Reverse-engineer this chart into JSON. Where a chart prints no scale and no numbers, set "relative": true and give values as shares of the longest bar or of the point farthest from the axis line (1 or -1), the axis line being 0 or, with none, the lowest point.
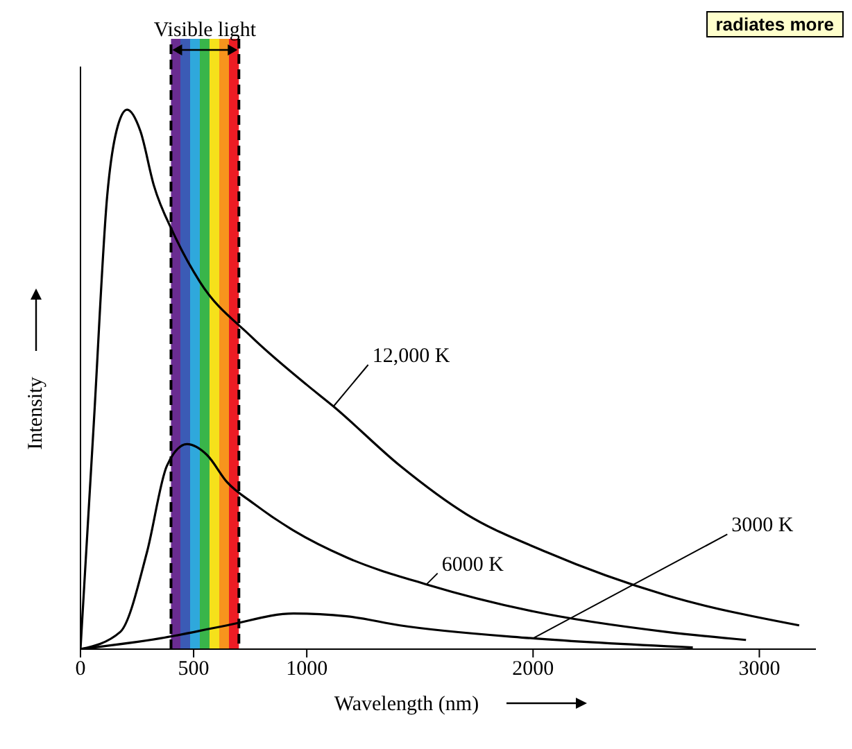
{
  "chart_data": {
    "type": "line",
    "relative": true,
    "xlabel": "Wavelength (nm)",
    "ylabel": "Intensity",
    "xlim": [
      0,
      3250
    ],
    "xticks": [
      0,
      500,
      1000,
      2000,
      3000
    ],
    "marker": "none",
    "line_style": "solid",
    "bands": [
      {
        "axis": "x",
        "from": 400,
        "to": 700,
        "label": "Visible light"
      }
    ],
    "annotations": [
      "radiates more"
    ],
    "series": [
      {
        "name": "12,000 K",
        "color": "#000000",
        "x": [
          0,
          59,
          118,
          165,
          206,
          265,
          324,
          412,
          529,
          753,
          1000,
          1118,
          1412,
          1706,
          2059,
          2588,
          3176
        ],
        "values": [
          0,
          0.42,
          0.84,
          0.97,
          1,
          0.96,
          0.86,
          0.77,
          0.68,
          0.58,
          0.49,
          0.45,
          0.34,
          0.25,
          0.18,
          0.1,
          0.044
        ]
      },
      {
        "name": "6000 K",
        "color": "#000000",
        "x": [
          0,
          176,
          294,
          382,
          471,
          559,
          647,
          765,
          941,
          1176,
          1529,
          2000,
          2588,
          2941
        ],
        "values": [
          0,
          0.032,
          0.18,
          0.34,
          0.38,
          0.36,
          0.31,
          0.27,
          0.22,
          0.17,
          0.12,
          0.07,
          0.032,
          0.017
        ]
      },
      {
        "name": "3000 K",
        "color": "#000000",
        "x": [
          0,
          353,
          647,
          941,
          1176,
          1412,
          2000,
          2706
        ],
        "values": [
          0,
          0.02,
          0.044,
          0.066,
          0.061,
          0.044,
          0.02,
          0.003
        ]
      }
    ]
  }
}
